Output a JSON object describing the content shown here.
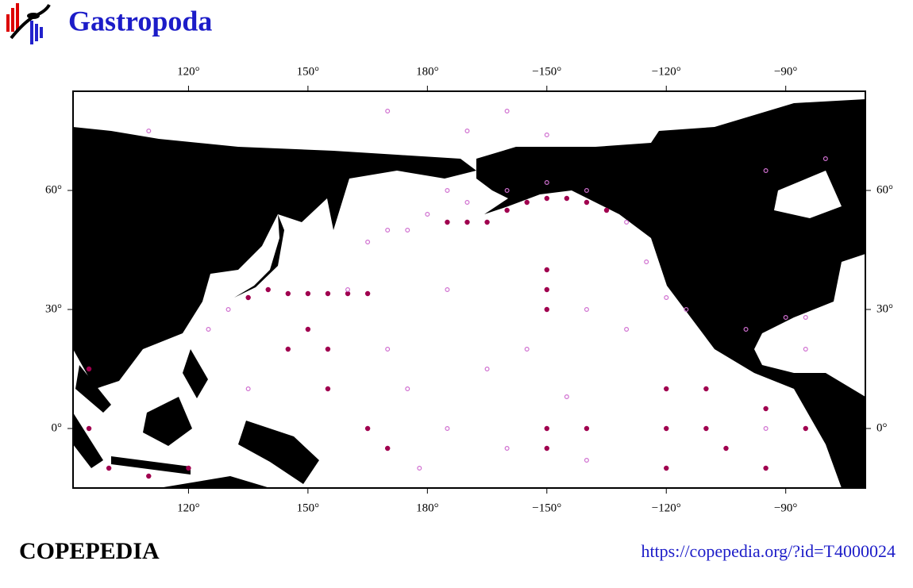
{
  "header": {
    "title": "Gastropoda"
  },
  "map": {
    "xlim": [
      91,
      -70
    ],
    "ylim": [
      -15,
      85
    ],
    "xticks": [
      {
        "value": 120,
        "label": "120°"
      },
      {
        "value": 150,
        "label": "150°"
      },
      {
        "value": 180,
        "label": "180°"
      },
      {
        "value": -150,
        "label": "−150°"
      },
      {
        "value": -120,
        "label": "−120°"
      },
      {
        "value": -90,
        "label": "−90°"
      }
    ],
    "yticks": [
      {
        "value": 60,
        "label": "60°"
      },
      {
        "value": 30,
        "label": "30°"
      },
      {
        "value": 0,
        "label": "0°"
      }
    ],
    "series": [
      {
        "color": "#a0004f",
        "filled": true,
        "lon": [
          135,
          140,
          145,
          150,
          155,
          160,
          165,
          -160,
          -155,
          -150,
          -145,
          -140,
          -135,
          -175,
          -170,
          -165,
          -150,
          -150,
          -150,
          -150,
          -150,
          -140,
          -120,
          -120,
          -120,
          -110,
          -110,
          -105,
          -95,
          -95,
          -85,
          155,
          155,
          150,
          145,
          95,
          95,
          100,
          110,
          120,
          165,
          170
        ],
        "lat": [
          33,
          35,
          34,
          34,
          34,
          34,
          34,
          55,
          57,
          58,
          58,
          57,
          55,
          52,
          52,
          52,
          40,
          35,
          30,
          0,
          -5,
          0,
          10,
          0,
          -10,
          10,
          0,
          -5,
          5,
          -10,
          0,
          20,
          10,
          25,
          20,
          15,
          0,
          -10,
          -12,
          -10,
          0,
          -5
        ]
      },
      {
        "color": "#d070d0",
        "filled": false,
        "lon": [
          170,
          165,
          175,
          180,
          -170,
          -175,
          -160,
          -150,
          -140,
          -130,
          -125,
          -120,
          -115,
          -100,
          -90,
          -85,
          175,
          -175,
          -165,
          -145,
          -140,
          -160,
          170,
          160,
          125,
          130,
          -170,
          -150,
          -160,
          170,
          110,
          -95,
          -80,
          -85,
          -95,
          -130,
          -175,
          -155,
          -140,
          178,
          135
        ],
        "lat": [
          50,
          47,
          50,
          54,
          57,
          60,
          60,
          62,
          60,
          52,
          42,
          33,
          30,
          25,
          28,
          28,
          10,
          0,
          15,
          8,
          -8,
          -5,
          20,
          35,
          25,
          30,
          75,
          74,
          80,
          80,
          75,
          65,
          68,
          20,
          0,
          25,
          35,
          20,
          30,
          -10,
          10
        ]
      }
    ]
  },
  "footer": {
    "brand": "COPEPEDIA",
    "url": "https://copepedia.org/?id=T4000024"
  }
}
